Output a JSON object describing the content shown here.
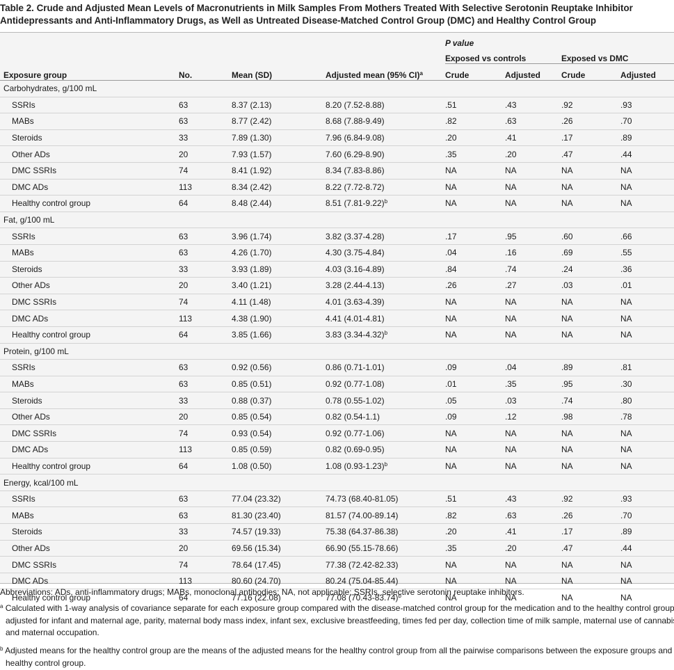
{
  "title": "Table 2. Crude and Adjusted Mean Levels of Macronutrients in Milk Samples From Mothers Treated With Selective Serotonin Reuptake Inhibitor Antidepressants and Anti-Inflammatory Drugs, as Well as Untreated Disease-Matched Control Group (DMC) and Healthy Control Group",
  "header": {
    "p_value": "P value",
    "group_controls": "Exposed vs controls",
    "group_dmc": "Exposed vs DMC",
    "exposure_group": "Exposure group",
    "no": "No.",
    "mean_sd": "Mean (SD)",
    "adjusted_mean": "Adjusted mean (95% CI)",
    "adjusted_mean_sup": "a",
    "crude": "Crude",
    "adjusted": "Adjusted"
  },
  "sections": [
    {
      "label": "Carbohydrates, g/100 mL",
      "rows": [
        {
          "group": "SSRIs",
          "no": "63",
          "mean": "8.37 (2.13)",
          "adj": "8.20 (7.52-8.88)",
          "sup": "",
          "c1": ".51",
          "a1": ".43",
          "c2": ".92",
          "a2": ".93"
        },
        {
          "group": "MABs",
          "no": "63",
          "mean": "8.77 (2.42)",
          "adj": "8.68 (7.88-9.49)",
          "sup": "",
          "c1": ".82",
          "a1": ".63",
          "c2": ".26",
          "a2": ".70"
        },
        {
          "group": "Steroids",
          "no": "33",
          "mean": "7.89 (1.30)",
          "adj": "7.96 (6.84-9.08)",
          "sup": "",
          "c1": ".20",
          "a1": ".41",
          "c2": ".17",
          "a2": ".89"
        },
        {
          "group": "Other ADs",
          "no": "20",
          "mean": "7.93 (1.57)",
          "adj": "7.60 (6.29-8.90)",
          "sup": "",
          "c1": ".35",
          "a1": ".20",
          "c2": ".47",
          "a2": ".44"
        },
        {
          "group": "DMC SSRIs",
          "no": "74",
          "mean": "8.41 (1.92)",
          "adj": "8.34 (7.83-8.86)",
          "sup": "",
          "c1": "NA",
          "a1": "NA",
          "c2": "NA",
          "a2": "NA"
        },
        {
          "group": "DMC ADs",
          "no": "113",
          "mean": "8.34 (2.42)",
          "adj": "8.22 (7.72-8.72)",
          "sup": "",
          "c1": "NA",
          "a1": "NA",
          "c2": "NA",
          "a2": "NA"
        },
        {
          "group": "Healthy control group",
          "no": "64",
          "mean": "8.48 (2.44)",
          "adj": "8.51 (7.81-9.22)",
          "sup": "b",
          "c1": "NA",
          "a1": "NA",
          "c2": "NA",
          "a2": "NA"
        }
      ]
    },
    {
      "label": "Fat, g/100 mL",
      "rows": [
        {
          "group": "SSRIs",
          "no": "63",
          "mean": "3.96 (1.74)",
          "adj": "3.82 (3.37-4.28)",
          "sup": "",
          "c1": ".17",
          "a1": ".95",
          "c2": ".60",
          "a2": ".66"
        },
        {
          "group": "MABs",
          "no": "63",
          "mean": "4.26 (1.70)",
          "adj": "4.30 (3.75-4.84)",
          "sup": "",
          "c1": ".04",
          "a1": ".16",
          "c2": ".69",
          "a2": ".55"
        },
        {
          "group": "Steroids",
          "no": "33",
          "mean": "3.93 (1.89)",
          "adj": "4.03 (3.16-4.89)",
          "sup": "",
          "c1": ".84",
          "a1": ".74",
          "c2": ".24",
          "a2": ".36"
        },
        {
          "group": "Other ADs",
          "no": "20",
          "mean": "3.40 (1.21)",
          "adj": "3.28 (2.44-4.13)",
          "sup": "",
          "c1": ".26",
          "a1": ".27",
          "c2": ".03",
          "a2": ".01"
        },
        {
          "group": "DMC SSRIs",
          "no": "74",
          "mean": "4.11 (1.48)",
          "adj": "4.01 (3.63-4.39)",
          "sup": "",
          "c1": "NA",
          "a1": "NA",
          "c2": "NA",
          "a2": "NA"
        },
        {
          "group": "DMC ADs",
          "no": "113",
          "mean": "4.38 (1.90)",
          "adj": "4.41 (4.01-4.81)",
          "sup": "",
          "c1": "NA",
          "a1": "NA",
          "c2": "NA",
          "a2": "NA"
        },
        {
          "group": "Healthy control group",
          "no": "64",
          "mean": "3.85 (1.66)",
          "adj": "3.83 (3.34-4.32)",
          "sup": "b",
          "c1": "NA",
          "a1": "NA",
          "c2": "NA",
          "a2": "NA"
        }
      ]
    },
    {
      "label": "Protein, g/100 mL",
      "rows": [
        {
          "group": "SSRIs",
          "no": "63",
          "mean": "0.92 (0.56)",
          "adj": "0.86 (0.71-1.01)",
          "sup": "",
          "c1": ".09",
          "a1": ".04",
          "c2": ".89",
          "a2": ".81"
        },
        {
          "group": "MABs",
          "no": "63",
          "mean": "0.85 (0.51)",
          "adj": "0.92 (0.77-1.08)",
          "sup": "",
          "c1": ".01",
          "a1": ".35",
          "c2": ".95",
          "a2": ".30"
        },
        {
          "group": "Steroids",
          "no": "33",
          "mean": "0.88 (0.37)",
          "adj": "0.78 (0.55-1.02)",
          "sup": "",
          "c1": ".05",
          "a1": ".03",
          "c2": ".74",
          "a2": ".80"
        },
        {
          "group": "Other ADs",
          "no": "20",
          "mean": "0.85 (0.54)",
          "adj": "0.82 (0.54-1.1)",
          "sup": "",
          "c1": ".09",
          "a1": ".12",
          "c2": ".98",
          "a2": ".78"
        },
        {
          "group": "DMC SSRIs",
          "no": "74",
          "mean": "0.93 (0.54)",
          "adj": "0.92 (0.77-1.06)",
          "sup": "",
          "c1": "NA",
          "a1": "NA",
          "c2": "NA",
          "a2": "NA"
        },
        {
          "group": "DMC ADs",
          "no": "113",
          "mean": "0.85 (0.59)",
          "adj": "0.82 (0.69-0.95)",
          "sup": "",
          "c1": "NA",
          "a1": "NA",
          "c2": "NA",
          "a2": "NA"
        },
        {
          "group": "Healthy control group",
          "no": "64",
          "mean": "1.08 (0.50)",
          "adj": "1.08 (0.93-1.23)",
          "sup": "b",
          "c1": "NA",
          "a1": "NA",
          "c2": "NA",
          "a2": "NA"
        }
      ]
    },
    {
      "label": "Energy, kcal/100 mL",
      "rows": [
        {
          "group": "SSRIs",
          "no": "63",
          "mean": "77.04 (23.32)",
          "adj": "74.73 (68.40-81.05)",
          "sup": "",
          "c1": ".51",
          "a1": ".43",
          "c2": ".92",
          "a2": ".93"
        },
        {
          "group": "MABs",
          "no": "63",
          "mean": "81.30 (23.40)",
          "adj": "81.57 (74.00-89.14)",
          "sup": "",
          "c1": ".82",
          "a1": ".63",
          "c2": ".26",
          "a2": ".70"
        },
        {
          "group": "Steroids",
          "no": "33",
          "mean": "74.57 (19.33)",
          "adj": "75.38 (64.37-86.38)",
          "sup": "",
          "c1": ".20",
          "a1": ".41",
          "c2": ".17",
          "a2": ".89"
        },
        {
          "group": "Other ADs",
          "no": "20",
          "mean": "69.56 (15.34)",
          "adj": "66.90 (55.15-78.66)",
          "sup": "",
          "c1": ".35",
          "a1": ".20",
          "c2": ".47",
          "a2": ".44"
        },
        {
          "group": "DMC SSRIs",
          "no": "74",
          "mean": "78.64 (17.45)",
          "adj": "77.38 (72.42-82.33)",
          "sup": "",
          "c1": "NA",
          "a1": "NA",
          "c2": "NA",
          "a2": "NA"
        },
        {
          "group": "DMC ADs",
          "no": "113",
          "mean": "80.60 (24.70)",
          "adj": "80.24 (75.04-85.44)",
          "sup": "",
          "c1": "NA",
          "a1": "NA",
          "c2": "NA",
          "a2": "NA"
        },
        {
          "group": "Healthy control group",
          "no": "64",
          "mean": "77.16 (22.08)",
          "adj": "77.08 (70.43-83.74)",
          "sup": "b",
          "c1": "NA",
          "a1": "NA",
          "c2": "NA",
          "a2": "NA"
        }
      ]
    }
  ],
  "footnotes": {
    "abbreviations": "Abbreviations: ADs, anti-inflammatory drugs; MABs, monoclonal antibodies; NA, not applicable; SSRIs, selective serotonin reuptake inhibitors.",
    "a_mark": "a",
    "a_text": "Calculated with 1-way analysis of covariance separate for each exposure group compared with the disease-matched control group for the medication and to the healthy control group, adjusted for infant and maternal age, parity, maternal body mass index, infant sex, exclusive breastfeeding, times fed per day, collection time of milk sample, maternal use of cannabis, and maternal occupation.",
    "b_mark": "b",
    "b_text": "Adjusted means for the healthy control group are the means of the adjusted means for the healthy control group from all the pairwise comparisons between the exposure groups and healthy control group."
  },
  "colors": {
    "table_background": "#f4f4f4",
    "rule_light": "#d3d3d3",
    "rule_dark": "#9a9a9a",
    "text": "#1a1a1a"
  }
}
